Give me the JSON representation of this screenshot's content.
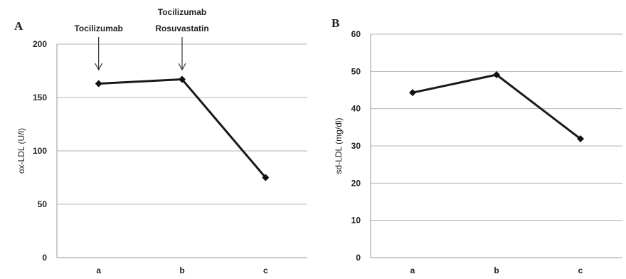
{
  "chart_data": [
    {
      "type": "line",
      "panel_label": "A",
      "categories": [
        "a",
        "b",
        "c"
      ],
      "series": [
        {
          "values": [
            163,
            167,
            75
          ]
        }
      ],
      "ylabel": "ox-LDL (U/l)",
      "xlabel": "",
      "ylim": [
        0,
        200
      ],
      "yticks": [
        "0",
        "50",
        "100",
        "150",
        "200"
      ],
      "grid": true,
      "annotations": [
        {
          "category": "a",
          "lines": [
            "Tocilizumab"
          ]
        },
        {
          "category": "b",
          "lines": [
            "Tocilizumab",
            "Rosuvastatin"
          ]
        }
      ]
    },
    {
      "type": "line",
      "panel_label": "B",
      "categories": [
        "a",
        "b",
        "c"
      ],
      "series": [
        {
          "values": [
            44.3,
            49.1,
            31.9
          ]
        }
      ],
      "ylabel": "sd-LDL (mg/dl)",
      "xlabel": "",
      "ylim": [
        0,
        60
      ],
      "yticks": [
        "0",
        "10",
        "20",
        "30",
        "40",
        "50",
        "60"
      ],
      "grid": true,
      "annotations": []
    }
  ]
}
